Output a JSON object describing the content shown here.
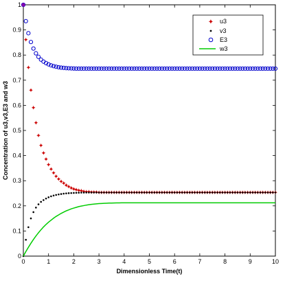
{
  "chart_data": {
    "type": "scatter",
    "xlabel": "Dimensionless Time(t)",
    "ylabel": "Concentration of u3,v3,E3 and w3",
    "xlim": [
      0,
      10
    ],
    "ylim": [
      0,
      1
    ],
    "x_ticks": [
      "0",
      "1",
      "2",
      "3",
      "4",
      "5",
      "6",
      "7",
      "8",
      "9",
      "10"
    ],
    "y_ticks": [
      "0",
      "0.1",
      "0.2",
      "0.3",
      "0.4",
      "0.5",
      "0.6",
      "0.7",
      "0.8",
      "0.9",
      "1"
    ],
    "legend_position": "top-right",
    "x": [
      0,
      0.1,
      0.2,
      0.3,
      0.4,
      0.5,
      0.6,
      0.7,
      0.8,
      0.9,
      1.0,
      1.1,
      1.2,
      1.3,
      1.4,
      1.5,
      1.6,
      1.7,
      1.8,
      1.9,
      2.0,
      2.1,
      2.2,
      2.3,
      2.4,
      2.5,
      2.6,
      2.7,
      2.8,
      2.9,
      3.0,
      3.1,
      3.2,
      3.3,
      3.4,
      3.5,
      3.6,
      3.7,
      3.8,
      3.9,
      4.0,
      4.1,
      4.2,
      4.3,
      4.4,
      4.5,
      4.6,
      4.7,
      4.8,
      4.9,
      5.0,
      5.1,
      5.2,
      5.3,
      5.4,
      5.5,
      5.6,
      5.7,
      5.8,
      5.9,
      6.0,
      6.1,
      6.2,
      6.3,
      6.4,
      6.5,
      6.6,
      6.7,
      6.8,
      6.9,
      7.0,
      7.1,
      7.2,
      7.3,
      7.4,
      7.5,
      7.6,
      7.7,
      7.8,
      7.9,
      8.0,
      8.1,
      8.2,
      8.3,
      8.4,
      8.5,
      8.6,
      8.7,
      8.8,
      8.9,
      9.0,
      9.1,
      9.2,
      9.3,
      9.4,
      9.5,
      9.6,
      9.7,
      9.8,
      9.9,
      10.0
    ],
    "series": [
      {
        "name": "u3",
        "color": "#cc0000",
        "marker": "star",
        "values": [
          1.0,
          0.86,
          0.75,
          0.66,
          0.59,
          0.53,
          0.48,
          0.44,
          0.41,
          0.385,
          0.363,
          0.345,
          0.33,
          0.317,
          0.306,
          0.297,
          0.289,
          0.282,
          0.276,
          0.271,
          0.267,
          0.264,
          0.261,
          0.259,
          0.257,
          0.256,
          0.255,
          0.2545,
          0.254,
          0.2535,
          0.253,
          0.253,
          0.253,
          0.253,
          0.253,
          0.253,
          0.253,
          0.253,
          0.253,
          0.253,
          0.253,
          0.253,
          0.253,
          0.253,
          0.253,
          0.253,
          0.253,
          0.253,
          0.253,
          0.253,
          0.253,
          0.253,
          0.253,
          0.253,
          0.253,
          0.253,
          0.253,
          0.253,
          0.253,
          0.253,
          0.253,
          0.253,
          0.253,
          0.253,
          0.253,
          0.253,
          0.253,
          0.253,
          0.253,
          0.253,
          0.253,
          0.253,
          0.253,
          0.253,
          0.253,
          0.253,
          0.253,
          0.253,
          0.253,
          0.253,
          0.253,
          0.253,
          0.253,
          0.253,
          0.253,
          0.253,
          0.253,
          0.253,
          0.253,
          0.253,
          0.253,
          0.253,
          0.253,
          0.253,
          0.253,
          0.253,
          0.253,
          0.253,
          0.253,
          0.253,
          0.253
        ]
      },
      {
        "name": "v3",
        "color": "#000000",
        "marker": "dot",
        "values": [
          0.0,
          0.065,
          0.115,
          0.15,
          0.175,
          0.193,
          0.206,
          0.216,
          0.223,
          0.229,
          0.234,
          0.238,
          0.241,
          0.2435,
          0.2455,
          0.247,
          0.2485,
          0.2495,
          0.2505,
          0.251,
          0.2515,
          0.252,
          0.2523,
          0.2526,
          0.2528,
          0.253,
          0.253,
          0.253,
          0.253,
          0.253,
          0.253,
          0.253,
          0.253,
          0.253,
          0.253,
          0.253,
          0.253,
          0.253,
          0.253,
          0.253,
          0.253,
          0.253,
          0.253,
          0.253,
          0.253,
          0.253,
          0.253,
          0.253,
          0.253,
          0.253,
          0.253,
          0.253,
          0.253,
          0.253,
          0.253,
          0.253,
          0.253,
          0.253,
          0.253,
          0.253,
          0.253,
          0.253,
          0.253,
          0.253,
          0.253,
          0.253,
          0.253,
          0.253,
          0.253,
          0.253,
          0.253,
          0.253,
          0.253,
          0.253,
          0.253,
          0.253,
          0.253,
          0.253,
          0.253,
          0.253,
          0.253,
          0.253,
          0.253,
          0.253,
          0.253,
          0.253,
          0.253,
          0.253,
          0.253,
          0.253,
          0.253,
          0.253,
          0.253,
          0.253,
          0.253,
          0.253,
          0.253,
          0.253,
          0.253,
          0.253,
          0.253
        ]
      },
      {
        "name": "E3",
        "color": "#0000cc",
        "marker": "circle",
        "values": [
          1.0,
          0.935,
          0.887,
          0.852,
          0.826,
          0.807,
          0.793,
          0.782,
          0.774,
          0.768,
          0.763,
          0.759,
          0.756,
          0.7535,
          0.7515,
          0.75,
          0.749,
          0.748,
          0.7475,
          0.747,
          0.7465,
          0.746,
          0.746,
          0.746,
          0.746,
          0.746,
          0.746,
          0.746,
          0.746,
          0.746,
          0.746,
          0.746,
          0.746,
          0.746,
          0.746,
          0.746,
          0.746,
          0.746,
          0.746,
          0.746,
          0.746,
          0.746,
          0.746,
          0.746,
          0.746,
          0.746,
          0.746,
          0.746,
          0.746,
          0.746,
          0.746,
          0.746,
          0.746,
          0.746,
          0.746,
          0.746,
          0.746,
          0.746,
          0.746,
          0.746,
          0.746,
          0.746,
          0.746,
          0.746,
          0.746,
          0.746,
          0.746,
          0.746,
          0.746,
          0.746,
          0.746,
          0.746,
          0.746,
          0.746,
          0.746,
          0.746,
          0.746,
          0.746,
          0.746,
          0.746,
          0.746,
          0.746,
          0.746,
          0.746,
          0.746,
          0.746,
          0.746,
          0.746,
          0.746,
          0.746,
          0.746,
          0.746,
          0.746,
          0.746,
          0.746,
          0.746,
          0.746,
          0.746,
          0.746,
          0.746,
          0.746
        ]
      },
      {
        "name": "w3",
        "color": "#00cc00",
        "marker": "line",
        "values": [
          0.0,
          0.018,
          0.035,
          0.051,
          0.066,
          0.08,
          0.093,
          0.105,
          0.116,
          0.126,
          0.135,
          0.143,
          0.151,
          0.158,
          0.164,
          0.17,
          0.175,
          0.18,
          0.184,
          0.188,
          0.191,
          0.194,
          0.197,
          0.199,
          0.201,
          0.203,
          0.2045,
          0.206,
          0.207,
          0.208,
          0.209,
          0.2095,
          0.21,
          0.2105,
          0.211,
          0.2112,
          0.2114,
          0.2116,
          0.2118,
          0.212,
          0.212,
          0.212,
          0.212,
          0.212,
          0.212,
          0.212,
          0.212,
          0.212,
          0.212,
          0.212,
          0.212,
          0.212,
          0.212,
          0.212,
          0.212,
          0.212,
          0.212,
          0.212,
          0.212,
          0.212,
          0.212,
          0.212,
          0.212,
          0.212,
          0.212,
          0.212,
          0.212,
          0.212,
          0.212,
          0.212,
          0.212,
          0.212,
          0.212,
          0.212,
          0.212,
          0.212,
          0.212,
          0.212,
          0.212,
          0.212,
          0.212,
          0.212,
          0.212,
          0.212,
          0.212,
          0.212,
          0.212,
          0.212,
          0.212,
          0.212,
          0.212,
          0.212,
          0.212,
          0.212,
          0.212,
          0.212,
          0.212,
          0.212,
          0.212,
          0.212,
          0.212
        ]
      }
    ]
  }
}
